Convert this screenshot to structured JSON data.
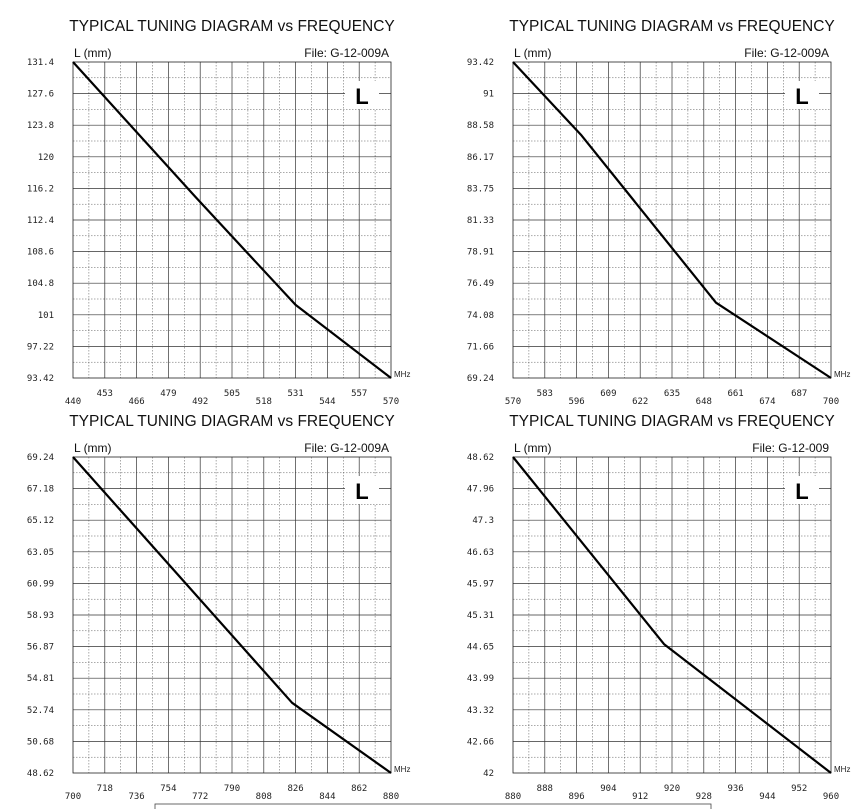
{
  "chart_data": [
    {
      "type": "line",
      "title": "TYPICAL TUNING DIAGRAM vs FREQUENCY",
      "ylabel": "L (mm)",
      "xlabel": "MHz",
      "file_label": "File:  G-12-009A",
      "badge": "L",
      "xlim": [
        440,
        570
      ],
      "ylim": [
        93.42,
        131.4
      ],
      "x_ticks_low": [
        "440",
        "466",
        "492",
        "518",
        "544",
        "570"
      ],
      "x_ticks_high": [
        "453",
        "479",
        "505",
        "531",
        "557"
      ],
      "y_ticks": [
        "131.4",
        "127.6",
        "123.8",
        "120",
        "116.2",
        "112.4",
        "108.6",
        "104.8",
        "101",
        "97.22",
        "93.42"
      ],
      "series": [
        {
          "x": [
            440,
            490,
            531,
            570
          ],
          "y": [
            131.4,
            115.2,
            102.2,
            93.42
          ]
        }
      ]
    },
    {
      "type": "line",
      "title": "TYPICAL TUNING DIAGRAM vs FREQUENCY",
      "ylabel": "L (mm)",
      "xlabel": "MHz",
      "file_label": "File:  G-12-009A",
      "badge": "L",
      "xlim": [
        570,
        700
      ],
      "ylim": [
        69.24,
        93.42
      ],
      "x_ticks_low": [
        "570",
        "596",
        "622",
        "648",
        "674",
        "700"
      ],
      "x_ticks_high": [
        "583",
        "609",
        "635",
        "661",
        "687"
      ],
      "y_ticks": [
        "93.42",
        "91",
        "88.58",
        "86.17",
        "83.75",
        "81.33",
        "78.91",
        "76.49",
        "74.08",
        "71.66",
        "69.24"
      ],
      "series": [
        {
          "x": [
            570,
            598,
            653,
            700
          ],
          "y": [
            93.42,
            87.8,
            75.0,
            69.24
          ]
        }
      ]
    },
    {
      "type": "line",
      "title": "TYPICAL TUNING DIAGRAM vs FREQUENCY",
      "ylabel": "L (mm)",
      "xlabel": "MHz",
      "file_label": "File:  G-12-009A",
      "badge": "L",
      "xlim": [
        700,
        880
      ],
      "ylim": [
        48.62,
        69.24
      ],
      "x_ticks_low": [
        "700",
        "736",
        "772",
        "808",
        "844",
        "880"
      ],
      "x_ticks_high": [
        "718",
        "754",
        "790",
        "826",
        "862"
      ],
      "y_ticks": [
        "69.24",
        "67.18",
        "65.12",
        "63.05",
        "60.99",
        "58.93",
        "56.87",
        "54.81",
        "52.74",
        "50.68",
        "48.62"
      ],
      "series": [
        {
          "x": [
            700,
            824,
            880
          ],
          "y": [
            69.24,
            53.2,
            48.62
          ]
        }
      ]
    },
    {
      "type": "line",
      "title": "TYPICAL TUNING DIAGRAM vs FREQUENCY",
      "ylabel": "L (mm)",
      "xlabel": "MHz",
      "file_label": "File:  G-12-009",
      "badge": "L",
      "xlim": [
        880,
        960
      ],
      "ylim": [
        42,
        48.62
      ],
      "x_ticks_low": [
        "880",
        "896",
        "912",
        "928",
        "944",
        "960"
      ],
      "x_ticks_high": [
        "888",
        "904",
        "920",
        "936",
        "952"
      ],
      "y_ticks": [
        "48.62",
        "47.96",
        "47.3",
        "46.63",
        "45.97",
        "45.31",
        "44.65",
        "43.99",
        "43.32",
        "42.66",
        "42"
      ],
      "series": [
        {
          "x": [
            880,
            918,
            960
          ],
          "y": [
            48.62,
            44.7,
            42.0
          ]
        }
      ]
    }
  ]
}
